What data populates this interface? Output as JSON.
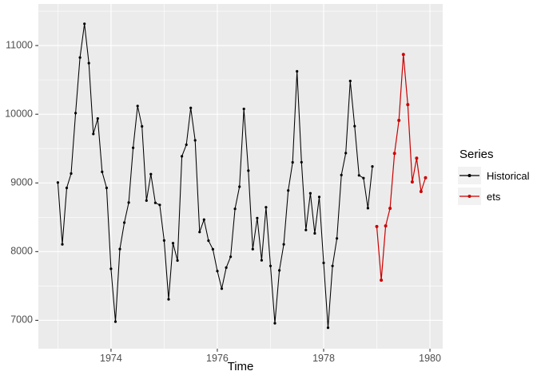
{
  "figure": {
    "background": "#ffffff",
    "panel_background": "#ebebeb",
    "grid_color": "#ffffff",
    "tick_mark_color": "#333333",
    "tick_label_color": "#4d4d4d",
    "legend_key_background": "#f2f2f2"
  },
  "chart_data": {
    "type": "line",
    "title": "",
    "xlabel": "Time",
    "ylabel": "",
    "x_ticks": [
      1974,
      1976,
      1978,
      1980
    ],
    "x_minor_ticks": [
      1973,
      1975,
      1977,
      1979
    ],
    "y_ticks": [
      7000,
      8000,
      9000,
      10000,
      11000
    ],
    "y_minor_ticks": [
      7500,
      8500,
      9500,
      10500,
      11500
    ],
    "x_domain": [
      1972.633,
      1980.24
    ],
    "y_domain": [
      6587,
      11605
    ],
    "grid": true,
    "legend_title": "Series",
    "legend_position": "right",
    "series": [
      {
        "name": "Historical",
        "color": "#000000",
        "start": 1973,
        "frequency": 12,
        "values": [
          9007,
          8106,
          8928,
          9137,
          10017,
          10826,
          11317,
          10744,
          9713,
          9938,
          9161,
          8927,
          7750,
          6981,
          8038,
          8422,
          8714,
          9512,
          10120,
          9823,
          8743,
          9129,
          8710,
          8680,
          8162,
          7306,
          8124,
          7870,
          9387,
          9556,
          10093,
          9620,
          8285,
          8466,
          8160,
          8034,
          7717,
          7461,
          7767,
          7925,
          8623,
          8945,
          10078,
          9179,
          8037,
          8488,
          7874,
          8647,
          7792,
          6957,
          7726,
          8106,
          8890,
          9299,
          10625,
          9302,
          8314,
          8850,
          8265,
          8796,
          7836,
          6892,
          7791,
          8192,
          9115,
          9434,
          10484,
          9827,
          9110,
          9070,
          8633,
          9240
        ]
      },
      {
        "name": "ets",
        "color": "#cc0000",
        "start": 1979,
        "frequency": 12,
        "values": [
          8365,
          7585,
          8375,
          8630,
          9430,
          9910,
          10870,
          10140,
          9015,
          9360,
          8875,
          9075
        ]
      }
    ]
  }
}
